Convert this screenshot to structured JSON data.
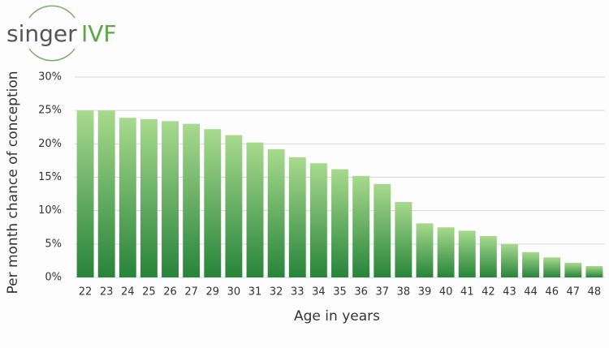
{
  "logo": {
    "brand": "singer",
    "suffix": "IVF"
  },
  "chart_data": {
    "type": "bar",
    "y_label": "Per month chance of conception",
    "x_label": "Age in years",
    "categories": [
      "22",
      "23",
      "24",
      "25",
      "26",
      "27",
      "29",
      "30",
      "31",
      "32",
      "33",
      "34",
      "35",
      "36",
      "37",
      "38",
      "39",
      "40",
      "41",
      "42",
      "43",
      "44",
      "46",
      "47",
      "48"
    ],
    "values": [
      25.0,
      25.0,
      23.9,
      23.7,
      23.4,
      23.0,
      22.2,
      21.3,
      20.2,
      19.2,
      18.0,
      17.1,
      16.2,
      15.2,
      14.0,
      11.3,
      8.1,
      7.5,
      7.0,
      6.2,
      5.0,
      3.8,
      3.0,
      2.2,
      1.7
    ],
    "colors": [
      "#a8da8e",
      "#27843a"
    ],
    "ylim": [
      0,
      30
    ],
    "yticks": [
      {
        "value": 0,
        "label": "0%"
      },
      {
        "value": 5,
        "label": "5%"
      },
      {
        "value": 10,
        "label": "10%"
      },
      {
        "value": 15,
        "label": "15%"
      },
      {
        "value": 20,
        "label": "20%"
      },
      {
        "value": 25,
        "label": "25%"
      },
      {
        "value": 30,
        "label": "30%"
      }
    ],
    "grid": true
  }
}
